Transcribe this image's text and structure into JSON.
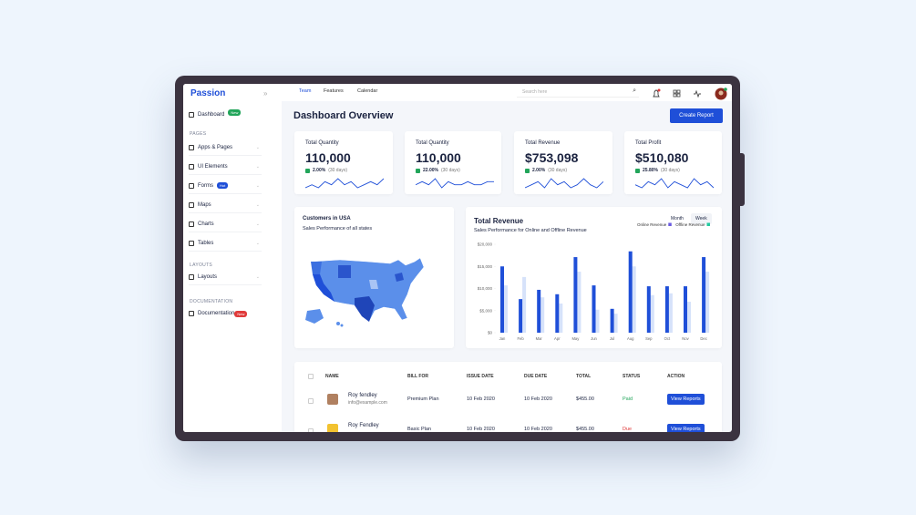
{
  "sidebar": {
    "logo": "Passion",
    "dashboard": {
      "label": "Dashboard",
      "badge": "New"
    },
    "sections": [
      {
        "heading": "PAGES",
        "items": [
          {
            "label": "Apps & Pages"
          },
          {
            "label": "UI Elements"
          },
          {
            "label": "Forms",
            "badge": "Hot"
          },
          {
            "label": "Maps"
          },
          {
            "label": "Charts"
          },
          {
            "label": "Tables"
          }
        ]
      },
      {
        "heading": "LAYOUTS",
        "items": [
          {
            "label": "Layouts"
          }
        ]
      },
      {
        "heading": "DOCUMENTATION",
        "items": [
          {
            "label": "Documentation",
            "badge": "New"
          }
        ]
      }
    ]
  },
  "nav": [
    "Team",
    "Features",
    "Calendar"
  ],
  "search_placeholder": "Search here",
  "header": {
    "title": "Dashboard Overview",
    "button": "Create Report"
  },
  "stats": [
    {
      "label": "Total Quantity",
      "value": "110,000",
      "change": "2.00%",
      "period": "(30 days)",
      "trend": [
        3,
        4,
        3,
        5,
        4,
        6,
        4,
        5,
        3,
        4,
        5,
        4,
        6
      ]
    },
    {
      "label": "Total Quantity",
      "value": "110,000",
      "change": "22.00%",
      "period": "(30 days)",
      "trend": [
        4,
        5,
        4,
        6,
        3,
        5,
        4,
        4,
        5,
        4,
        4,
        5,
        5
      ]
    },
    {
      "label": "Total Revenue",
      "value": "$753,098",
      "change": "2.00%",
      "period": "(30 days)",
      "trend": [
        3,
        4,
        5,
        3,
        6,
        4,
        5,
        3,
        4,
        6,
        4,
        3,
        5
      ]
    },
    {
      "label": "Total Profit",
      "value": "$510,080",
      "change": "25.80%",
      "period": "(30 days)",
      "trend": [
        4,
        3,
        5,
        4,
        6,
        3,
        5,
        4,
        3,
        6,
        4,
        5,
        3
      ]
    }
  ],
  "map": {
    "title": "Customers in USA",
    "subtitle": "Sales Performance of all states"
  },
  "revenue_toggles": [
    "Month",
    "Week"
  ],
  "chart_data": {
    "type": "bar",
    "title": "Total Revenue",
    "subtitle": "Sales Performance for Online and Offline Revenue",
    "categories": [
      "Jan",
      "Feb",
      "Mar",
      "Apr",
      "May",
      "Jun",
      "Jul",
      "Aug",
      "Sep",
      "Oct",
      "Nov",
      "Dec"
    ],
    "series": [
      {
        "name": "Online Revenue",
        "color": "#1f4fd8",
        "values": [
          15000,
          7600,
          9700,
          8700,
          17100,
          10700,
          5400,
          18400,
          10500,
          10500,
          10500,
          17100
        ]
      },
      {
        "name": "Offline Revenue",
        "color": "#d6e2fa",
        "values": [
          10700,
          12600,
          8000,
          6600,
          13800,
          5200,
          4300,
          15000,
          8500,
          8900,
          7000,
          13800
        ]
      }
    ],
    "ylim": [
      0,
      20000
    ],
    "yticks": [
      {
        "value": 0,
        "label": "$0"
      },
      {
        "value": 5000,
        "label": "$5,000"
      },
      {
        "value": 10000,
        "label": "$10,000"
      },
      {
        "value": 15000,
        "label": "$15,000"
      },
      {
        "value": 20000,
        "label": "$20,000"
      }
    ]
  },
  "table": {
    "columns": [
      "NAME",
      "BILL FOR",
      "ISSUE DATE",
      "DUE DATE",
      "TOTAL",
      "STATUS",
      "ACTION"
    ],
    "rows": [
      {
        "name": "Roy fendley",
        "email": "info@example.com",
        "bill_for": "Premium Plan",
        "issue_date": "10 Feb 2020",
        "due_date": "10 Feb 2020",
        "total": "$455.00",
        "status": "Paid",
        "action": "View Reports"
      },
      {
        "name": "Roy Fendley",
        "bill_for": "Basic Plan",
        "issue_date": "10 Feb 2020",
        "due_date": "10 Feb 2020",
        "total": "$455.00",
        "status": "Due",
        "action": "View Reports"
      }
    ]
  }
}
